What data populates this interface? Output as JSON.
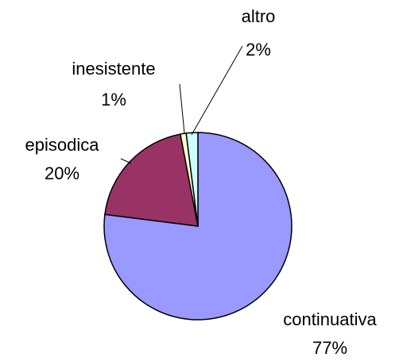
{
  "chart_data": {
    "type": "pie",
    "categories": [
      "continuativa",
      "episodica",
      "inesistente",
      "altro"
    ],
    "values": [
      77,
      20,
      1,
      2
    ],
    "value_labels": [
      "77%",
      "20%",
      "1%",
      "2%"
    ],
    "colors": [
      "#9999ff",
      "#993366",
      "#ffffcc",
      "#ccffff"
    ]
  }
}
